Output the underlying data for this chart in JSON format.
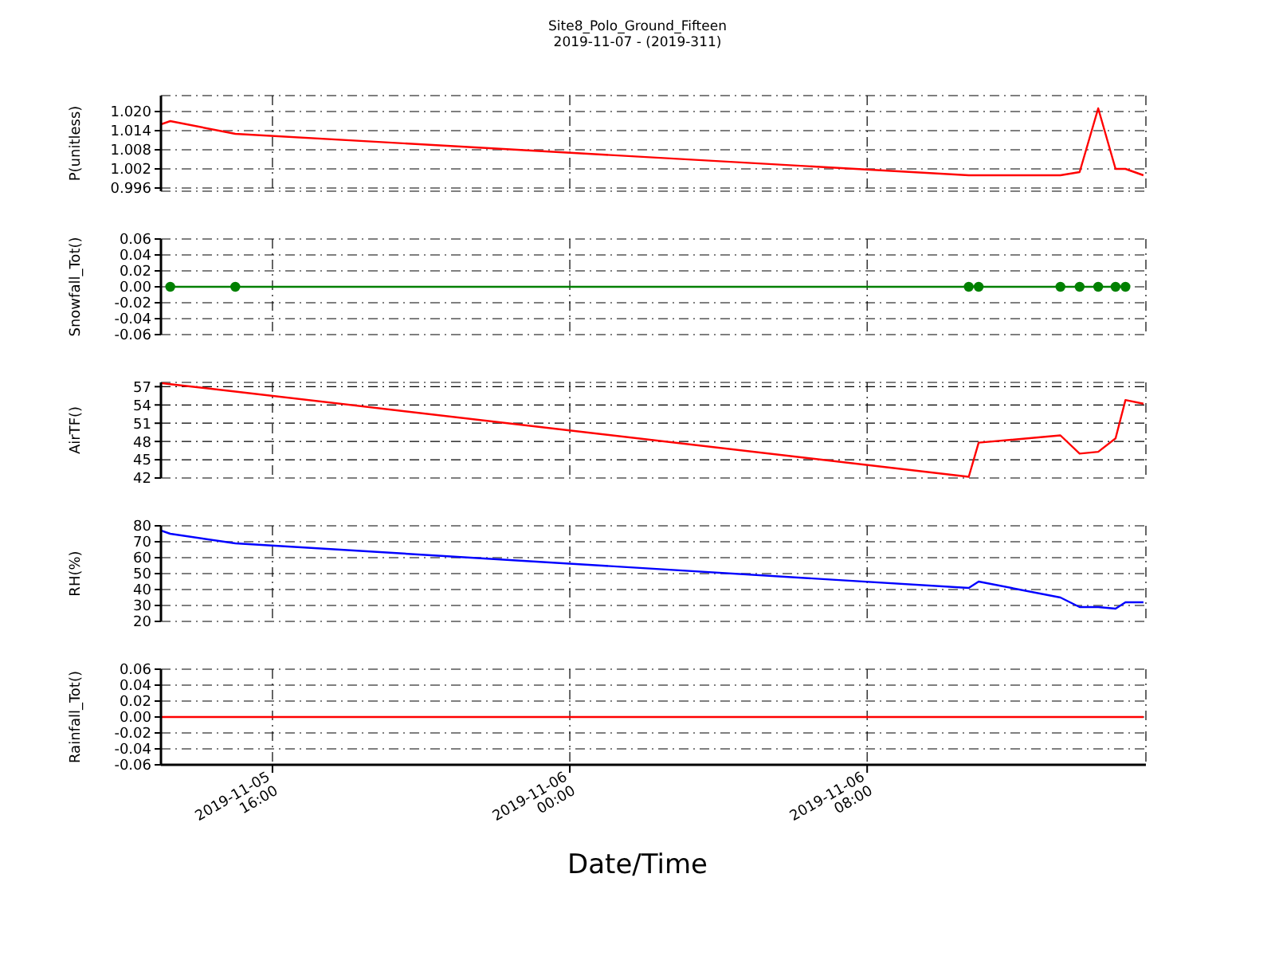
{
  "chart_data": [
    {
      "type": "line",
      "title": "Site8_Polo_Ground_Fifteen",
      "subtitle": "2019-11-07 - (2019-311)",
      "ylabel": "P(unitless)",
      "x": [
        "2019-11-05T13:00",
        "2019-11-05T13:15",
        "2019-11-05T15:00",
        "2019-11-06T10:44",
        "2019-11-06T11:00",
        "2019-11-06T13:12",
        "2019-11-06T13:43",
        "2019-11-06T14:13",
        "2019-11-06T14:41",
        "2019-11-06T14:57",
        "2019-11-06T15:26"
      ],
      "series": [
        {
          "color": "#ff0000",
          "values": [
            1.016,
            1.017,
            1.013,
            1.0,
            1.0,
            1.0,
            1.001,
            1.021,
            1.002,
            1.002,
            1.0
          ]
        }
      ],
      "xlim": [
        "2019-11-05T13:00",
        "2019-11-06T15:30"
      ],
      "xticks": [
        {
          "value": "2019-11-05T16:00",
          "label": null
        },
        {
          "value": "2019-11-06T00:00",
          "label": null
        },
        {
          "value": "2019-11-06T08:00",
          "label": null
        }
      ],
      "ylim": [
        0.995,
        1.025
      ],
      "yticks": [
        {
          "value": 0.996,
          "label": "0.996"
        },
        {
          "value": 1.002,
          "label": "1.002"
        },
        {
          "value": 1.008,
          "label": "1.008"
        },
        {
          "value": 1.014,
          "label": "1.014"
        },
        {
          "value": 1.02,
          "label": "1.020"
        }
      ],
      "grid": true,
      "tick_labels": "y"
    },
    {
      "type": "line",
      "ylabel": "Snowfall_Tot()",
      "x": [
        "2019-11-05T13:15",
        "2019-11-05T15:00",
        "2019-11-06T10:44",
        "2019-11-06T11:00",
        "2019-11-06T13:12",
        "2019-11-06T13:43",
        "2019-11-06T14:13",
        "2019-11-06T14:41",
        "2019-11-06T14:57"
      ],
      "series": [
        {
          "color": "#008000",
          "values": [
            0,
            0,
            0,
            0,
            0,
            0,
            0,
            0,
            0
          ]
        }
      ],
      "marker": "circle",
      "xlim": [
        "2019-11-05T13:00",
        "2019-11-06T15:30"
      ],
      "xticks": [
        {
          "value": "2019-11-05T16:00",
          "label": null
        },
        {
          "value": "2019-11-06T00:00",
          "label": null
        },
        {
          "value": "2019-11-06T08:00",
          "label": null
        }
      ],
      "ylim": [
        -0.06,
        0.06
      ],
      "yticks": [
        {
          "value": -0.06,
          "label": "-0.06"
        },
        {
          "value": -0.04,
          "label": "-0.04"
        },
        {
          "value": -0.02,
          "label": "-0.02"
        },
        {
          "value": 0,
          "label": "0.00"
        },
        {
          "value": 0.02,
          "label": "0.02"
        },
        {
          "value": 0.04,
          "label": "0.04"
        },
        {
          "value": 0.06,
          "label": "0.06"
        }
      ],
      "grid": true,
      "tick_labels": "y"
    },
    {
      "type": "line",
      "ylabel": "AirTF()",
      "x": [
        "2019-11-05T13:00",
        "2019-11-05T13:15",
        "2019-11-05T15:00",
        "2019-11-06T10:44",
        "2019-11-06T11:00",
        "2019-11-06T13:12",
        "2019-11-06T13:43",
        "2019-11-06T14:13",
        "2019-11-06T14:41",
        "2019-11-06T14:57",
        "2019-11-06T15:26"
      ],
      "series": [
        {
          "color": "#ff0000",
          "values": [
            57.6,
            57.4,
            56.2,
            42.2,
            47.8,
            49.0,
            46.0,
            46.3,
            48.5,
            54.8,
            54.2
          ]
        }
      ],
      "xlim": [
        "2019-11-05T13:00",
        "2019-11-06T15:30"
      ],
      "xticks": [
        {
          "value": "2019-11-05T16:00",
          "label": null
        },
        {
          "value": "2019-11-06T00:00",
          "label": null
        },
        {
          "value": "2019-11-06T08:00",
          "label": null
        }
      ],
      "ylim": [
        42,
        57.7
      ],
      "yticks": [
        42,
        45,
        48,
        51,
        54,
        57
      ],
      "grid": true,
      "tick_labels": "y"
    },
    {
      "type": "line",
      "ylabel": "RH(%)",
      "x": [
        "2019-11-05T13:00",
        "2019-11-05T13:15",
        "2019-11-05T15:00",
        "2019-11-06T10:44",
        "2019-11-06T11:00",
        "2019-11-06T13:12",
        "2019-11-06T13:43",
        "2019-11-06T14:13",
        "2019-11-06T14:41",
        "2019-11-06T14:57",
        "2019-11-06T15:26"
      ],
      "series": [
        {
          "color": "#0000ff",
          "values": [
            77,
            75,
            69,
            41,
            45,
            35,
            29,
            29,
            28,
            32,
            32
          ]
        }
      ],
      "xlim": [
        "2019-11-05T13:00",
        "2019-11-06T15:30"
      ],
      "xticks": [
        {
          "value": "2019-11-05T16:00",
          "label": null
        },
        {
          "value": "2019-11-06T00:00",
          "label": null
        },
        {
          "value": "2019-11-06T08:00",
          "label": null
        }
      ],
      "ylim": [
        20,
        80
      ],
      "yticks": [
        20,
        30,
        40,
        50,
        60,
        70,
        80
      ],
      "grid": true,
      "tick_labels": "y"
    },
    {
      "type": "line",
      "ylabel": "Rainfall_Tot()",
      "xlabel": "Date/Time",
      "x": [
        "2019-11-05T13:00",
        "2019-11-05T13:15",
        "2019-11-05T15:00",
        "2019-11-06T10:44",
        "2019-11-06T11:00",
        "2019-11-06T13:12",
        "2019-11-06T13:43",
        "2019-11-06T14:13",
        "2019-11-06T14:41",
        "2019-11-06T14:57",
        "2019-11-06T15:26"
      ],
      "series": [
        {
          "color": "#ff0000",
          "values": [
            0,
            0,
            0,
            0,
            0,
            0,
            0,
            0,
            0,
            0,
            0
          ]
        }
      ],
      "xlim": [
        "2019-11-05T13:00",
        "2019-11-06T15:30"
      ],
      "xticks": [
        {
          "value": "2019-11-05T16:00",
          "label": "2019-11-05\n16:00"
        },
        {
          "value": "2019-11-06T00:00",
          "label": "2019-11-06\n00:00"
        },
        {
          "value": "2019-11-06T08:00",
          "label": "2019-11-06\n08:00"
        }
      ],
      "ylim": [
        -0.06,
        0.06
      ],
      "yticks": [
        {
          "value": -0.06,
          "label": "-0.06"
        },
        {
          "value": -0.04,
          "label": "-0.04"
        },
        {
          "value": -0.02,
          "label": "-0.02"
        },
        {
          "value": 0,
          "label": "0.00"
        },
        {
          "value": 0.02,
          "label": "0.02"
        },
        {
          "value": 0.04,
          "label": "0.04"
        },
        {
          "value": 0.06,
          "label": "0.06"
        }
      ],
      "grid": true
    }
  ]
}
